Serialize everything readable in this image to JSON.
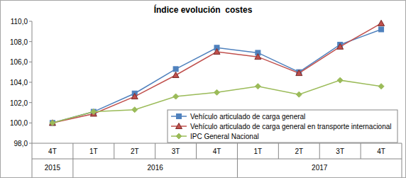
{
  "chart_data": {
    "type": "line",
    "title": "Índice evolución  costes",
    "categories": [
      "4T",
      "1T",
      "2T",
      "3T",
      "4T",
      "1T",
      "2T",
      "3T",
      "4T"
    ],
    "x_groups": [
      {
        "label": "2015",
        "count": 1
      },
      {
        "label": "2016",
        "count": 4
      },
      {
        "label": "2017",
        "count": 4
      }
    ],
    "series": [
      {
        "name": "Vehículo articulado de carga general",
        "color": "#4f81bd",
        "marker": "square",
        "values": [
          100.0,
          101.1,
          102.9,
          105.3,
          107.4,
          106.9,
          105.0,
          107.7,
          109.2
        ]
      },
      {
        "name": "Vehículo articulado de carga general en transporte internacional",
        "color": "#c0504d",
        "marker": "triangle",
        "values": [
          100.0,
          100.9,
          102.6,
          104.7,
          107.0,
          106.5,
          104.9,
          107.5,
          109.8
        ]
      },
      {
        "name": "IPC General Nacional",
        "color": "#9bbb59",
        "marker": "diamond",
        "values": [
          100.0,
          101.1,
          101.3,
          102.6,
          103.0,
          103.6,
          102.8,
          104.2,
          103.6
        ]
      }
    ],
    "ylim": [
      98,
      110
    ],
    "yticks": [
      {
        "value": 98,
        "label": "98,0"
      },
      {
        "value": 100,
        "label": "100,0"
      },
      {
        "value": 102,
        "label": "102,0"
      },
      {
        "value": 104,
        "label": "104,0"
      },
      {
        "value": 106,
        "label": "106,0"
      },
      {
        "value": 108,
        "label": "108,0"
      },
      {
        "value": 110,
        "label": "110,0"
      }
    ],
    "grid": false,
    "legend": "lower right"
  }
}
